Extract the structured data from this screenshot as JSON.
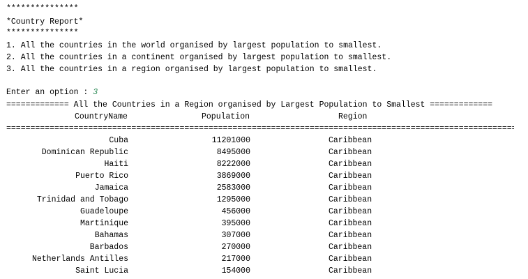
{
  "banner": {
    "top_stars": "***************",
    "title": "*Country Report*",
    "bottom_stars": "***************"
  },
  "menu": [
    "1. All the countries in the world organised by largest population to smallest.",
    "2. All the countries in a continent organised by largest population to smallest.",
    "3. All the countries in a region organised by largest population to smallest."
  ],
  "prompt": {
    "label": "Enter an option : ",
    "value": "3"
  },
  "report": {
    "heading": "============= All the Countries in a Region organised by Largest Population to Smallest =============",
    "columns": {
      "name": "CountryName",
      "population": "Population",
      "region": "Region"
    },
    "separator": "==========================================================================================================",
    "rows": [
      {
        "name": "Cuba",
        "population": "11201000",
        "region": "Caribbean"
      },
      {
        "name": "Dominican Republic",
        "population": "8495000",
        "region": "Caribbean"
      },
      {
        "name": "Haiti",
        "population": "8222000",
        "region": "Caribbean"
      },
      {
        "name": "Puerto Rico",
        "population": "3869000",
        "region": "Caribbean"
      },
      {
        "name": "Jamaica",
        "population": "2583000",
        "region": "Caribbean"
      },
      {
        "name": "Trinidad and Tobago",
        "population": "1295000",
        "region": "Caribbean"
      },
      {
        "name": "Guadeloupe",
        "population": "456000",
        "region": "Caribbean"
      },
      {
        "name": "Martinique",
        "population": "395000",
        "region": "Caribbean"
      },
      {
        "name": "Bahamas",
        "population": "307000",
        "region": "Caribbean"
      },
      {
        "name": "Barbados",
        "population": "270000",
        "region": "Caribbean"
      },
      {
        "name": "Netherlands Antilles",
        "population": "217000",
        "region": "Caribbean"
      },
      {
        "name": "Saint Lucia",
        "population": "154000",
        "region": "Caribbean"
      }
    ]
  }
}
